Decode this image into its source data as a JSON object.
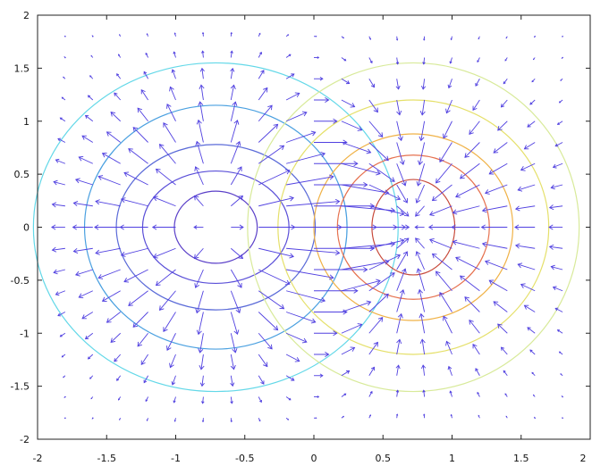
{
  "chart_data": {
    "type": "quiver-contour",
    "title": "",
    "xlabel": "",
    "ylabel": "",
    "xlim": [
      -2,
      2
    ],
    "ylim": [
      -2,
      2
    ],
    "grid": false,
    "x_ticks": [
      "-2",
      "-1.5",
      "-1",
      "-0.5",
      "0",
      "0.5",
      "1",
      "1.5",
      "2"
    ],
    "y_ticks": [
      "2",
      "1.5",
      "1",
      "0.5",
      "0",
      "-0.5",
      "-1",
      "-1.5",
      "-2"
    ],
    "x_tick_values": [
      -2,
      -1.5,
      -1,
      -0.5,
      0,
      0.5,
      1,
      1.5,
      2
    ],
    "y_tick_values": [
      2,
      1.5,
      1,
      0.5,
      0,
      -0.5,
      -1,
      -1.5,
      -2
    ],
    "field": {
      "description_function": "z = x*exp(-x^2 - y^2)",
      "vector_field": "gradient of z",
      "grid_step": 0.2,
      "arrow_color": "#5040e0"
    },
    "contours": [
      {
        "center": [
          -0.71,
          0
        ],
        "rx": 0.3,
        "ry": 0.34,
        "color": "#5a3fc8"
      },
      {
        "center": [
          -0.71,
          0
        ],
        "rx": 0.53,
        "ry": 0.53,
        "color": "#5a4fd8"
      },
      {
        "center": [
          -0.71,
          0
        ],
        "rx": 0.72,
        "ry": 0.78,
        "color": "#5a6ad8"
      },
      {
        "center": [
          -0.71,
          0
        ],
        "rx": 0.95,
        "ry": 1.15,
        "color": "#4aa0e0"
      },
      {
        "center": [
          -0.71,
          0
        ],
        "rx": 1.32,
        "ry": 1.55,
        "color": "#63d8e8"
      },
      {
        "center": [
          0.72,
          0
        ],
        "rx": 0.3,
        "ry": 0.45,
        "color": "#c84b3c"
      },
      {
        "center": [
          0.72,
          0
        ],
        "rx": 0.55,
        "ry": 0.68,
        "color": "#e6714f"
      },
      {
        "center": [
          0.72,
          0
        ],
        "rx": 0.72,
        "ry": 0.88,
        "color": "#f0b247"
      },
      {
        "center": [
          0.72,
          0
        ],
        "rx": 0.98,
        "ry": 1.2,
        "color": "#e5e06a"
      },
      {
        "center": [
          0.72,
          0
        ],
        "rx": 1.2,
        "ry": 1.55,
        "color": "#d8ea9a"
      }
    ]
  }
}
